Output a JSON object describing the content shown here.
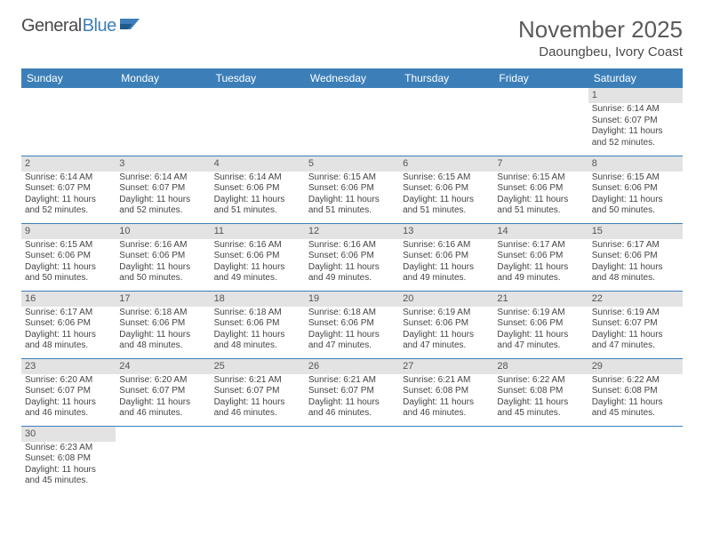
{
  "logo": {
    "text1": "General",
    "text2": "Blue"
  },
  "title": "November 2025",
  "location": "Daoungbeu, Ivory Coast",
  "colors": {
    "header_bg": "#3c7fb8",
    "header_text": "#ffffff",
    "daynum_bg": "#e3e3e3",
    "border": "#3c7fb8",
    "body_text": "#444444",
    "title_text": "#5a5a5a"
  },
  "day_headers": [
    "Sunday",
    "Monday",
    "Tuesday",
    "Wednesday",
    "Thursday",
    "Friday",
    "Saturday"
  ],
  "weeks": [
    [
      null,
      null,
      null,
      null,
      null,
      null,
      {
        "n": "1",
        "sunrise": "6:14 AM",
        "sunset": "6:07 PM",
        "dl_h": "11",
        "dl_m": "52"
      }
    ],
    [
      {
        "n": "2",
        "sunrise": "6:14 AM",
        "sunset": "6:07 PM",
        "dl_h": "11",
        "dl_m": "52"
      },
      {
        "n": "3",
        "sunrise": "6:14 AM",
        "sunset": "6:07 PM",
        "dl_h": "11",
        "dl_m": "52"
      },
      {
        "n": "4",
        "sunrise": "6:14 AM",
        "sunset": "6:06 PM",
        "dl_h": "11",
        "dl_m": "51"
      },
      {
        "n": "5",
        "sunrise": "6:15 AM",
        "sunset": "6:06 PM",
        "dl_h": "11",
        "dl_m": "51"
      },
      {
        "n": "6",
        "sunrise": "6:15 AM",
        "sunset": "6:06 PM",
        "dl_h": "11",
        "dl_m": "51"
      },
      {
        "n": "7",
        "sunrise": "6:15 AM",
        "sunset": "6:06 PM",
        "dl_h": "11",
        "dl_m": "51"
      },
      {
        "n": "8",
        "sunrise": "6:15 AM",
        "sunset": "6:06 PM",
        "dl_h": "11",
        "dl_m": "50"
      }
    ],
    [
      {
        "n": "9",
        "sunrise": "6:15 AM",
        "sunset": "6:06 PM",
        "dl_h": "11",
        "dl_m": "50"
      },
      {
        "n": "10",
        "sunrise": "6:16 AM",
        "sunset": "6:06 PM",
        "dl_h": "11",
        "dl_m": "50"
      },
      {
        "n": "11",
        "sunrise": "6:16 AM",
        "sunset": "6:06 PM",
        "dl_h": "11",
        "dl_m": "49"
      },
      {
        "n": "12",
        "sunrise": "6:16 AM",
        "sunset": "6:06 PM",
        "dl_h": "11",
        "dl_m": "49"
      },
      {
        "n": "13",
        "sunrise": "6:16 AM",
        "sunset": "6:06 PM",
        "dl_h": "11",
        "dl_m": "49"
      },
      {
        "n": "14",
        "sunrise": "6:17 AM",
        "sunset": "6:06 PM",
        "dl_h": "11",
        "dl_m": "49"
      },
      {
        "n": "15",
        "sunrise": "6:17 AM",
        "sunset": "6:06 PM",
        "dl_h": "11",
        "dl_m": "48"
      }
    ],
    [
      {
        "n": "16",
        "sunrise": "6:17 AM",
        "sunset": "6:06 PM",
        "dl_h": "11",
        "dl_m": "48"
      },
      {
        "n": "17",
        "sunrise": "6:18 AM",
        "sunset": "6:06 PM",
        "dl_h": "11",
        "dl_m": "48"
      },
      {
        "n": "18",
        "sunrise": "6:18 AM",
        "sunset": "6:06 PM",
        "dl_h": "11",
        "dl_m": "48"
      },
      {
        "n": "19",
        "sunrise": "6:18 AM",
        "sunset": "6:06 PM",
        "dl_h": "11",
        "dl_m": "47"
      },
      {
        "n": "20",
        "sunrise": "6:19 AM",
        "sunset": "6:06 PM",
        "dl_h": "11",
        "dl_m": "47"
      },
      {
        "n": "21",
        "sunrise": "6:19 AM",
        "sunset": "6:06 PM",
        "dl_h": "11",
        "dl_m": "47"
      },
      {
        "n": "22",
        "sunrise": "6:19 AM",
        "sunset": "6:07 PM",
        "dl_h": "11",
        "dl_m": "47"
      }
    ],
    [
      {
        "n": "23",
        "sunrise": "6:20 AM",
        "sunset": "6:07 PM",
        "dl_h": "11",
        "dl_m": "46"
      },
      {
        "n": "24",
        "sunrise": "6:20 AM",
        "sunset": "6:07 PM",
        "dl_h": "11",
        "dl_m": "46"
      },
      {
        "n": "25",
        "sunrise": "6:21 AM",
        "sunset": "6:07 PM",
        "dl_h": "11",
        "dl_m": "46"
      },
      {
        "n": "26",
        "sunrise": "6:21 AM",
        "sunset": "6:07 PM",
        "dl_h": "11",
        "dl_m": "46"
      },
      {
        "n": "27",
        "sunrise": "6:21 AM",
        "sunset": "6:08 PM",
        "dl_h": "11",
        "dl_m": "46"
      },
      {
        "n": "28",
        "sunrise": "6:22 AM",
        "sunset": "6:08 PM",
        "dl_h": "11",
        "dl_m": "45"
      },
      {
        "n": "29",
        "sunrise": "6:22 AM",
        "sunset": "6:08 PM",
        "dl_h": "11",
        "dl_m": "45"
      }
    ],
    [
      {
        "n": "30",
        "sunrise": "6:23 AM",
        "sunset": "6:08 PM",
        "dl_h": "11",
        "dl_m": "45"
      },
      null,
      null,
      null,
      null,
      null,
      null
    ]
  ],
  "labels": {
    "sunrise": "Sunrise:",
    "sunset": "Sunset:",
    "daylight_prefix": "Daylight:",
    "hours_word": "hours",
    "and_word": "and",
    "minutes_word": "minutes."
  }
}
